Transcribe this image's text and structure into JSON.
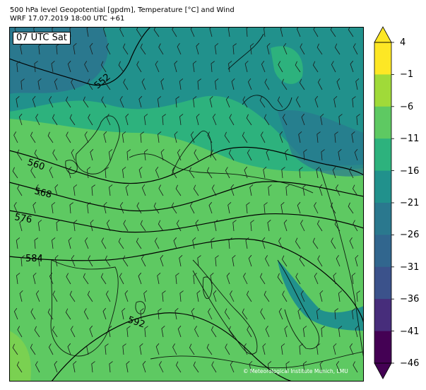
{
  "header": {
    "line1": "500 hPa level Geopotential [gpdm], Temperature [°C] and Wind",
    "line2": "WRF 17.07.2019 18:00 UTC +61"
  },
  "map": {
    "time_label": "07 UTC Sat",
    "copyright": "© Meteorological Institute Munich, LMU",
    "contour_labels": [
      "552",
      "560",
      "568",
      "576",
      "584",
      "592"
    ],
    "land_cover_colors": {
      "deep_cold": "#2a788e",
      "cold": "#21918c",
      "mild": "#2db27d",
      "warm": "#5ec962",
      "hot": "#7ad151"
    }
  },
  "colorbar": {
    "labels": [
      "4",
      "−1",
      "−6",
      "−11",
      "−16",
      "−21",
      "−26",
      "−31",
      "−36",
      "−41",
      "−46"
    ],
    "colors": [
      "#fde725",
      "#a0da39",
      "#5ec962",
      "#2db27d",
      "#21918c",
      "#2a788e",
      "#31668e",
      "#3b528b",
      "#472d7b",
      "#440154"
    ],
    "over_color": "#fde725",
    "under_color": "#440154"
  }
}
